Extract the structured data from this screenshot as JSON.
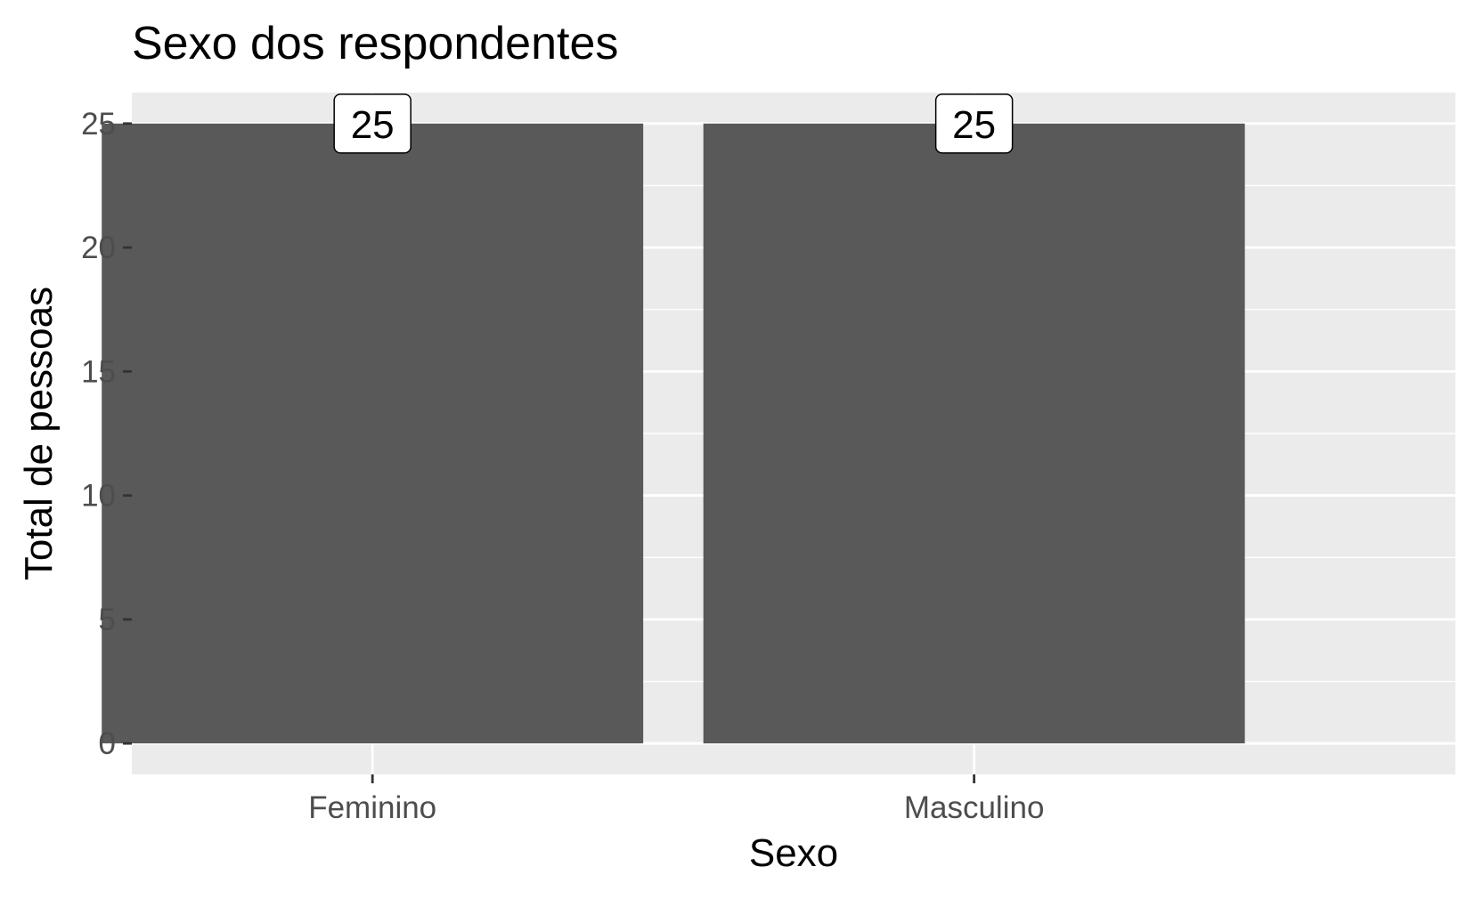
{
  "chart_data": {
    "type": "bar",
    "title": "Sexo dos respondentes",
    "xlabel": "Sexo",
    "ylabel": "Total de pessoas",
    "categories": [
      "Feminino",
      "Masculino"
    ],
    "values": [
      25,
      25
    ],
    "data_labels": [
      "25",
      "25"
    ],
    "ylim": [
      -1.25,
      26.25
    ],
    "yticks": [
      0,
      5,
      10,
      15,
      20,
      25
    ],
    "ytick_labels": [
      "0",
      "5",
      "10",
      "15",
      "20",
      "25"
    ],
    "grid": true,
    "legend": "none",
    "colors": {
      "bar": "#595959",
      "panel": "#ebebeb",
      "grid": "#ffffff",
      "label_box": "#ffffff"
    }
  }
}
